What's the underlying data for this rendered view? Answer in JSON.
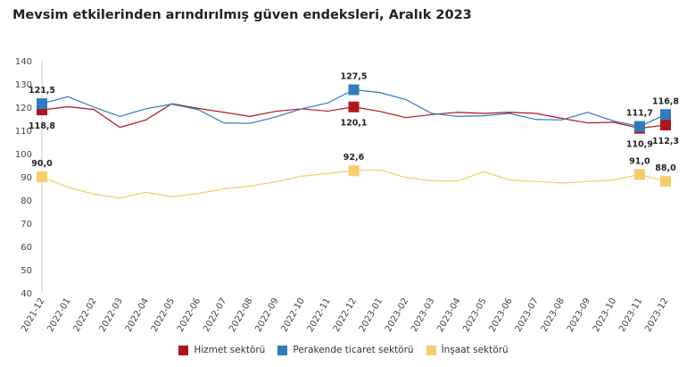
{
  "chart_data": {
    "type": "line",
    "title": "Mevsim etkilerinden arındırılmış güven endeksleri, Aralık 2023",
    "xlabel": "",
    "ylabel": "",
    "ylim": [
      40,
      140
    ],
    "yticks": [
      40,
      50,
      60,
      70,
      80,
      90,
      100,
      110,
      120,
      130,
      140
    ],
    "grid": false,
    "legend_position": "bottom",
    "categories": [
      "2021-12",
      "2022-01",
      "2022-02",
      "2022-03",
      "2022-04",
      "2022-05",
      "2022-06",
      "2022-07",
      "2022-08",
      "2022-09",
      "2022-10",
      "2022-11",
      "2022-12",
      "2023-01",
      "2023-02",
      "2023-03",
      "2023-04",
      "2023-05",
      "2023-06",
      "2023-07",
      "2023-08",
      "2023-09",
      "2023-10",
      "2023-11",
      "2023-12"
    ],
    "labelled_points": [
      0,
      12,
      23,
      24
    ],
    "series": [
      {
        "name": "Hizmet sektörü",
        "color": "#b0151c",
        "label_side": "below",
        "values": [
          118.8,
          120.2,
          119.0,
          111.3,
          114.5,
          121.5,
          119.5,
          117.8,
          116.0,
          118.2,
          119.3,
          118.3,
          120.1,
          118.2,
          115.5,
          116.8,
          117.8,
          117.3,
          117.8,
          117.3,
          115.2,
          113.2,
          113.5,
          110.9,
          112.3
        ]
      },
      {
        "name": "Perakende ticaret sektörü",
        "color": "#2f7bbf",
        "label_side": "above",
        "values": [
          121.5,
          124.5,
          120.0,
          116.0,
          119.3,
          121.3,
          119.0,
          113.2,
          113.0,
          115.8,
          119.3,
          121.8,
          127.5,
          126.3,
          123.3,
          117.3,
          116.0,
          116.3,
          117.3,
          114.7,
          114.5,
          117.8,
          114.0,
          111.7,
          116.8
        ]
      },
      {
        "name": "İnşaat sektörü",
        "color": "#f6cd6b",
        "label_side": "above",
        "values": [
          90.0,
          85.5,
          82.5,
          80.8,
          83.3,
          81.4,
          82.8,
          84.8,
          86.0,
          87.8,
          90.3,
          91.5,
          92.6,
          93.0,
          89.7,
          88.3,
          88.2,
          92.2,
          88.6,
          88.0,
          87.3,
          88.0,
          88.6,
          91.0,
          88.0
        ]
      }
    ]
  }
}
